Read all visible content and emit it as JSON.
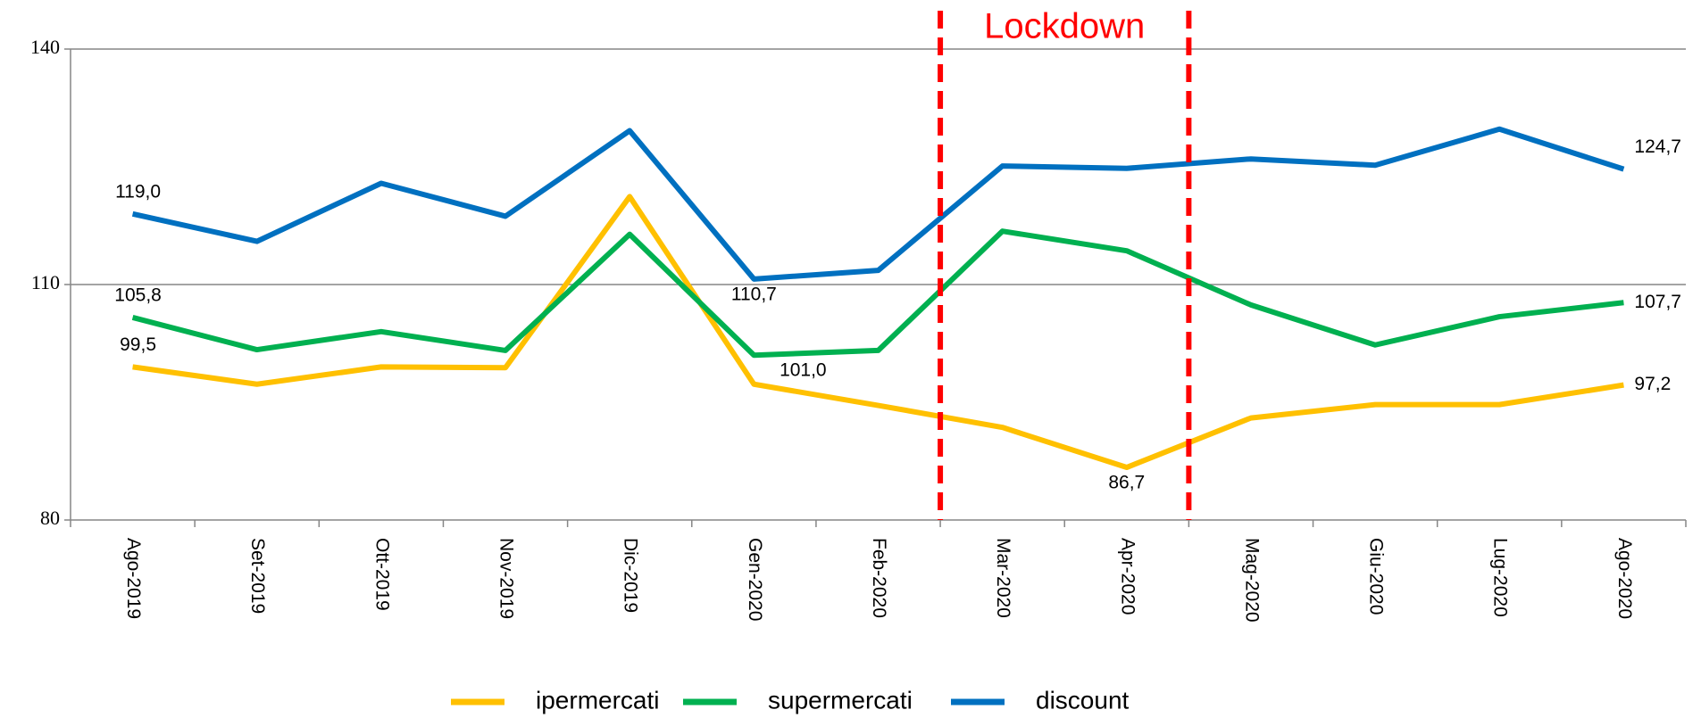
{
  "chart_data": {
    "type": "line",
    "categories": [
      "Ago-2019",
      "Set-2019",
      "Ott-2019",
      "Nov-2019",
      "Dic-2019",
      "Gen-2020",
      "Feb-2020",
      "Mar-2020",
      "Apr-2020",
      "Mag-2020",
      "Giu-2020",
      "Lug-2020",
      "Ago-2020"
    ],
    "series": [
      {
        "name": "ipermercati",
        "color": "#ffc000",
        "values": [
          99.5,
          97.3,
          99.5,
          99.4,
          121.2,
          97.3,
          94.6,
          91.8,
          86.7,
          93.0,
          94.7,
          94.7,
          97.2
        ],
        "value_labels": [
          "99,5",
          null,
          null,
          null,
          null,
          null,
          null,
          null,
          "86,7",
          null,
          null,
          null,
          "97,2"
        ]
      },
      {
        "name": "supermercati",
        "color": "#00b050",
        "values": [
          105.8,
          101.7,
          104.0,
          101.6,
          116.4,
          101.0,
          101.6,
          116.8,
          114.3,
          107.4,
          102.3,
          105.9,
          107.7
        ],
        "value_labels": [
          "105,8",
          null,
          null,
          null,
          null,
          "101,0",
          null,
          null,
          null,
          null,
          null,
          null,
          "107,7"
        ]
      },
      {
        "name": "discount",
        "color": "#0070c0",
        "values": [
          119.0,
          115.5,
          122.9,
          118.7,
          129.6,
          110.7,
          111.8,
          125.1,
          124.8,
          126.0,
          125.2,
          129.8,
          124.7
        ],
        "value_labels": [
          "119,0",
          null,
          null,
          null,
          null,
          "110,7",
          null,
          null,
          null,
          null,
          null,
          null,
          "124,7"
        ]
      }
    ],
    "ylim": [
      80,
      140
    ],
    "yticks": [
      80,
      110,
      140
    ],
    "grid": true,
    "annotation": {
      "text": "Lockdown",
      "color": "#ff0000",
      "span": [
        "Mar-2020",
        "Apr-2020"
      ]
    },
    "legend": "bottom"
  }
}
